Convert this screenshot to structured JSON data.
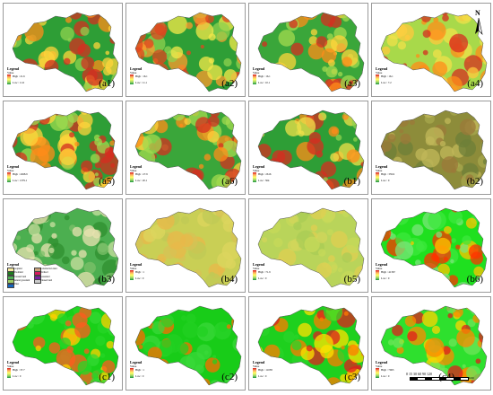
{
  "figure": {
    "north_label": "N",
    "scale": {
      "ticks": "0 15 30 60 90 120",
      "unit": "KM"
    },
    "panels": [
      {
        "id": "a1",
        "label": "(a1)",
        "legend": {
          "title": "Legend",
          "sub": "Value",
          "high": "High : 21.6",
          "low": "Low : 11.6"
        }
      },
      {
        "id": "a2",
        "label": "(a2)",
        "legend": {
          "title": "Legend",
          "sub": "Value",
          "high": "High : 16.1",
          "low": "Low : 11.1"
        }
      },
      {
        "id": "a3",
        "label": "(a3)",
        "legend": {
          "title": "Legend",
          "sub": "Value",
          "high": "High : 16.1",
          "low": "Low : 10.1"
        }
      },
      {
        "id": "a4",
        "label": "(a4)",
        "legend": {
          "title": "Legend",
          "sub": "Value",
          "high": "High : 16.1",
          "low": "Low : 7.2"
        }
      },
      {
        "id": "a5",
        "label": "(a5)",
        "legend": {
          "title": "Legend",
          "sub": "Value",
          "high": "High : 2498.9",
          "low": "Low : 1379.1"
        }
      },
      {
        "id": "a6",
        "label": "(a6)",
        "legend": {
          "title": "Legend",
          "sub": "Value",
          "high": "High : 27.9",
          "low": "Low : 20.1"
        }
      },
      {
        "id": "b1",
        "label": "(b1)",
        "legend": {
          "title": "Legend",
          "sub": "Value",
          "high": "High : 2616",
          "low": "Low : 364"
        }
      },
      {
        "id": "b2",
        "label": "(b2)",
        "legend": {
          "title": "Legend",
          "sub": "Value",
          "high": "High : 359.9",
          "low": "Low : 0"
        }
      },
      {
        "id": "b3",
        "label": "(b3)",
        "legend": {
          "title": "Legend"
        }
      },
      {
        "id": "b4",
        "label": "(b4)",
        "legend": {
          "title": "Legend",
          "sub": "Value",
          "high": "High : 1",
          "low": "Low : 0"
        }
      },
      {
        "id": "b5",
        "label": "(b5)",
        "legend": {
          "title": "Legend",
          "sub": "Value",
          "high": "High : 71.9",
          "low": "Low : 0"
        }
      },
      {
        "id": "b6",
        "label": "(b6)",
        "legend": {
          "title": "Legend",
          "sub": "Value",
          "high": "High : 41367",
          "low": "Low : 0"
        }
      },
      {
        "id": "c1",
        "label": "(c1)",
        "legend": {
          "title": "Legend",
          "sub": "Value",
          "high": "High : 37.7",
          "low": "Low : 0"
        }
      },
      {
        "id": "c2",
        "label": "(c2)",
        "legend": {
          "title": "Legend",
          "sub": "Value",
          "high": "High : 1",
          "low": "Low : 0"
        }
      },
      {
        "id": "c3",
        "label": "(c3)",
        "legend": {
          "title": "Legend",
          "sub": "Value",
          "high": "High : 11038",
          "low": "Low : 0"
        }
      },
      {
        "id": "c4",
        "label": "(c4)",
        "legend": {
          "title": "Legend",
          "sub": "Value",
          "high": "High : 7063",
          "low": "Low : 0"
        }
      }
    ],
    "landcover_legend": [
      {
        "name": "Cropland",
        "color": "#f5e79e"
      },
      {
        "name": "Woodland",
        "color": "#1e7b1e"
      },
      {
        "name": "Forested land",
        "color": "#4caf50"
      },
      {
        "name": "Natural grassland",
        "color": "#9ccc65"
      },
      {
        "name": "Water",
        "color": "#1565c0"
      },
      {
        "name": "Construction land",
        "color": "#c9a27a"
      },
      {
        "name": "Orchard",
        "color": "#d81b60"
      },
      {
        "name": "Grassland",
        "color": "#7b1fa2"
      },
      {
        "name": "Unused land",
        "color": "#cccccc"
      }
    ]
  }
}
